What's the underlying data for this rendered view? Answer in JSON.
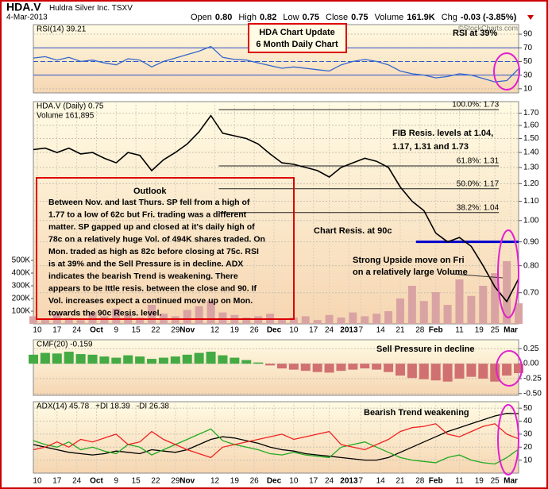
{
  "header": {
    "symbol": "HDA.V",
    "company": "Huldra Silver Inc.",
    "exchange": "TSXV",
    "date": "4-Mar-2013",
    "stats": [
      {
        "label": "Open",
        "value": "0.80"
      },
      {
        "label": "High",
        "value": "0.82"
      },
      {
        "label": "Low",
        "value": "0.75"
      },
      {
        "label": "Close",
        "value": "0.75"
      },
      {
        "label": "Volume",
        "value": "161.9K"
      },
      {
        "label": "Chg",
        "value": "-0.03 (-3.85%)"
      }
    ],
    "watermark": "©StockCharts.com"
  },
  "annotations": {
    "update_box": [
      "HDA Chart Update",
      "6 Month Daily Chart"
    ],
    "rsi_note": "RSI at 39%",
    "fib_note": [
      "FIB Resis. levels at 1.04,",
      "1.17, 1.31 and 1.73"
    ],
    "outlook_title": "Outlook",
    "outlook": [
      "Between Nov. and last Thurs. SP fell from a high of",
      "1.77 to a low of 62c but Fri. trading was a different",
      "matter. SP gapped up and closed at it's daily high of",
      "78c on a relatively huge Vol. of 494K shares traded. On",
      "Mon. traded as high as 82c before closing at 75c. RSI",
      "is at 39% and the Sell Pressure is in decline. ADX",
      "indicates the bearish Trend is weakening. There",
      "appears to be Ittle resis. between the close and 90. If",
      "Vol. increases expect a continued move up on Mon.",
      "towards the 90c Resis. level."
    ],
    "resis_note": "Chart Resis. at 90c",
    "upside_note": [
      "Strong Upside move on Fri",
      "on a relatively large Volume"
    ],
    "sell_note": "Sell Pressure in decline",
    "bear_note": "Bearish Trend weakening"
  },
  "chart_data": [
    {
      "type": "line",
      "xlim": [
        0,
        123
      ],
      "ylim": [
        4,
        104
      ],
      "yticks": [
        10,
        30,
        50,
        70,
        90
      ],
      "bands": [
        30,
        70
      ],
      "midline": 50,
      "band_color": "#3355cc",
      "x": [
        0,
        3,
        6,
        9,
        12,
        15,
        18,
        21,
        24,
        27,
        30,
        33,
        36,
        39,
        42,
        45,
        48,
        51,
        54,
        57,
        60,
        63,
        66,
        69,
        72,
        75,
        78,
        81,
        84,
        87,
        90,
        93,
        96,
        99,
        102,
        105,
        108,
        111,
        114,
        117,
        120,
        123
      ],
      "series": [
        {
          "name": "RSI(14) 39.21",
          "color": "#3366cc",
          "values": [
            55,
            57,
            52,
            56,
            50,
            52,
            48,
            45,
            54,
            52,
            42,
            50,
            55,
            60,
            65,
            72,
            56,
            53,
            52,
            48,
            44,
            40,
            42,
            40,
            38,
            36,
            45,
            50,
            53,
            50,
            45,
            36,
            32,
            30,
            26,
            28,
            32,
            30,
            25,
            20,
            22,
            39.21
          ]
        }
      ]
    },
    {
      "type": "line",
      "log_scale": true,
      "xlim": [
        0,
        123
      ],
      "ylim": [
        0.6,
        1.8
      ],
      "yticks": [
        {
          "value": 0.7,
          "label": "0.70"
        },
        {
          "value": 0.8,
          "label": "0.80"
        },
        {
          "value": 0.9,
          "label": "0.90"
        },
        {
          "value": 1.0,
          "label": "1.00"
        },
        {
          "value": 1.1,
          "label": "1.10"
        },
        {
          "value": 1.2,
          "label": "1.20"
        },
        {
          "value": 1.3,
          "label": "1.30"
        },
        {
          "value": 1.4,
          "label": "1.40"
        },
        {
          "value": 1.5,
          "label": "1.50"
        },
        {
          "value": 1.6,
          "label": "1.60"
        },
        {
          "value": 1.7,
          "label": "1.70"
        }
      ],
      "xticks": [
        {
          "value": 1,
          "label": "10"
        },
        {
          "value": 6,
          "label": "17"
        },
        {
          "value": 11,
          "label": "24"
        },
        {
          "value": 16,
          "label": "Oct"
        },
        {
          "value": 21,
          "label": "9"
        },
        {
          "value": 26,
          "label": "15"
        },
        {
          "value": 31,
          "label": "22"
        },
        {
          "value": 36,
          "label": "29"
        },
        {
          "value": 39,
          "label": "Nov"
        },
        {
          "value": 46,
          "label": "12"
        },
        {
          "value": 51,
          "label": "19"
        },
        {
          "value": 56,
          "label": "26"
        },
        {
          "value": 61,
          "label": "Dec"
        },
        {
          "value": 66,
          "label": "10"
        },
        {
          "value": 71,
          "label": "17"
        },
        {
          "value": 75,
          "label": "24"
        },
        {
          "value": 80,
          "label": "2013"
        },
        {
          "value": 83,
          "label": "7"
        },
        {
          "value": 88,
          "label": "14"
        },
        {
          "value": 93,
          "label": "21"
        },
        {
          "value": 98,
          "label": "28"
        },
        {
          "value": 102,
          "label": "Feb"
        },
        {
          "value": 108,
          "label": "11"
        },
        {
          "value": 113,
          "label": "19"
        },
        {
          "value": 117,
          "label": "25"
        },
        {
          "value": 121,
          "label": "Mar"
        }
      ],
      "x": [
        0,
        3,
        6,
        9,
        12,
        15,
        18,
        21,
        24,
        27,
        30,
        33,
        36,
        39,
        42,
        45,
        48,
        51,
        54,
        57,
        60,
        63,
        66,
        69,
        72,
        75,
        78,
        81,
        84,
        87,
        90,
        93,
        96,
        99,
        102,
        105,
        108,
        111,
        114,
        117,
        120,
        123
      ],
      "series": [
        {
          "name": "HDA.V (Daily) 0.75",
          "color": "#000000",
          "values": [
            1.42,
            1.43,
            1.4,
            1.43,
            1.39,
            1.4,
            1.36,
            1.33,
            1.4,
            1.38,
            1.28,
            1.35,
            1.4,
            1.46,
            1.55,
            1.68,
            1.54,
            1.52,
            1.5,
            1.46,
            1.39,
            1.33,
            1.32,
            1.3,
            1.28,
            1.24,
            1.3,
            1.33,
            1.36,
            1.34,
            1.3,
            1.18,
            1.1,
            1.05,
            0.94,
            0.9,
            0.92,
            0.88,
            0.8,
            0.72,
            0.67,
            0.75
          ]
        }
      ],
      "volume": {
        "name": "Volume 161,895",
        "color": "#d9a3a3",
        "ylim": [
          0,
          1750000
        ],
        "yticks": [
          {
            "value": 100000,
            "label": "100K"
          },
          {
            "value": 200000,
            "label": "200K"
          },
          {
            "value": 300000,
            "label": "300K"
          },
          {
            "value": 400000,
            "label": "400K"
          },
          {
            "value": 500000,
            "label": "500K"
          }
        ],
        "values": [
          60000,
          40000,
          80000,
          50000,
          30000,
          90000,
          60000,
          120000,
          70000,
          50000,
          150000,
          80000,
          60000,
          110000,
          140000,
          180000,
          90000,
          70000,
          50000,
          60000,
          80000,
          40000,
          50000,
          60000,
          30000,
          70000,
          50000,
          90000,
          60000,
          80000,
          100000,
          200000,
          300000,
          180000,
          250000,
          150000,
          350000,
          220000,
          300000,
          400000,
          494000,
          161895
        ]
      },
      "reference_lines": [
        {
          "value": 1.73,
          "label": "100.0%: 1.73"
        },
        {
          "value": 1.31,
          "label": "61.8%: 1.31"
        },
        {
          "value": 1.17,
          "label": "50.0%: 1.17"
        },
        {
          "value": 1.04,
          "label": "38.2%: 1.04"
        }
      ],
      "resistance": {
        "value": 0.9,
        "color": "#0000cc"
      }
    },
    {
      "type": "bar",
      "xlim": [
        0,
        123
      ],
      "ylim": [
        -0.53,
        0.4
      ],
      "yticks": [
        {
          "value": -0.5,
          "label": "-0.50"
        },
        {
          "value": -0.25,
          "label": "-0.25"
        },
        {
          "value": 0,
          "label": "0.00"
        },
        {
          "value": 0.25,
          "label": "0.25"
        }
      ],
      "x": [
        0,
        3,
        6,
        9,
        12,
        15,
        18,
        21,
        24,
        27,
        30,
        33,
        36,
        39,
        42,
        45,
        48,
        51,
        54,
        57,
        60,
        63,
        66,
        69,
        72,
        75,
        78,
        81,
        84,
        87,
        90,
        93,
        96,
        99,
        102,
        105,
        108,
        111,
        114,
        117,
        120,
        123
      ],
      "series": [
        {
          "name": "CMF(20) -0.159",
          "color": "#44aa44",
          "negative_color": "#d07070",
          "values": [
            0.15,
            0.18,
            0.17,
            0.2,
            0.16,
            0.15,
            0.12,
            0.1,
            0.14,
            0.12,
            0.08,
            0.1,
            0.12,
            0.15,
            0.18,
            0.2,
            0.14,
            0.1,
            0.06,
            0.02,
            -0.03,
            -0.08,
            -0.1,
            -0.12,
            -0.14,
            -0.15,
            -0.12,
            -0.1,
            -0.08,
            -0.1,
            -0.14,
            -0.2,
            -0.24,
            -0.26,
            -0.28,
            -0.3,
            -0.25,
            -0.22,
            -0.25,
            -0.3,
            -0.2,
            -0.159
          ]
        }
      ]
    },
    {
      "type": "line",
      "xlim": [
        0,
        123
      ],
      "ylim": [
        0,
        55
      ],
      "yticks": [
        10,
        20,
        30,
        40,
        50
      ],
      "xticks": [
        {
          "value": 1,
          "label": "10"
        },
        {
          "value": 6,
          "label": "17"
        },
        {
          "value": 11,
          "label": "24"
        },
        {
          "value": 16,
          "label": "Oct"
        },
        {
          "value": 21,
          "label": "9"
        },
        {
          "value": 26,
          "label": "15"
        },
        {
          "value": 31,
          "label": "22"
        },
        {
          "value": 36,
          "label": "29"
        },
        {
          "value": 39,
          "label": "Nov"
        },
        {
          "value": 46,
          "label": "12"
        },
        {
          "value": 51,
          "label": "19"
        },
        {
          "value": 56,
          "label": "26"
        },
        {
          "value": 61,
          "label": "Dec"
        },
        {
          "value": 66,
          "label": "10"
        },
        {
          "value": 71,
          "label": "17"
        },
        {
          "value": 75,
          "label": "24"
        },
        {
          "value": 80,
          "label": "2013"
        },
        {
          "value": 83,
          "label": "7"
        },
        {
          "value": 88,
          "label": "14"
        },
        {
          "value": 93,
          "label": "21"
        },
        {
          "value": 98,
          "label": "28"
        },
        {
          "value": 102,
          "label": "Feb"
        },
        {
          "value": 108,
          "label": "11"
        },
        {
          "value": 113,
          "label": "19"
        },
        {
          "value": 117,
          "label": "25"
        },
        {
          "value": 121,
          "label": "Mar"
        }
      ],
      "x": [
        0,
        3,
        6,
        9,
        12,
        15,
        18,
        21,
        24,
        27,
        30,
        33,
        36,
        39,
        42,
        45,
        48,
        51,
        54,
        57,
        60,
        63,
        66,
        69,
        72,
        75,
        78,
        81,
        84,
        87,
        90,
        93,
        96,
        99,
        102,
        105,
        108,
        111,
        114,
        117,
        120,
        123
      ],
      "series": [
        {
          "name": "ADX(14) 45.78",
          "color": "#000000",
          "values": [
            22,
            20,
            18,
            16,
            15,
            14,
            15,
            17,
            16,
            15,
            18,
            17,
            16,
            18,
            22,
            26,
            28,
            27,
            25,
            23,
            20,
            18,
            17,
            15,
            14,
            13,
            12,
            11,
            10,
            10,
            12,
            16,
            20,
            24,
            28,
            32,
            35,
            38,
            41,
            44,
            46,
            45.78
          ]
        },
        {
          "name": "+DI 18.39",
          "color": "#22aa22",
          "values": [
            25,
            22,
            20,
            24,
            18,
            20,
            17,
            15,
            22,
            20,
            14,
            18,
            22,
            26,
            30,
            34,
            25,
            22,
            20,
            18,
            15,
            14,
            16,
            14,
            13,
            12,
            20,
            22,
            24,
            20,
            16,
            12,
            10,
            9,
            8,
            12,
            14,
            10,
            8,
            7,
            12,
            18.39
          ]
        },
        {
          "name": "-DI 26.38",
          "color": "#ee2222",
          "values": [
            18,
            20,
            24,
            20,
            26,
            24,
            27,
            30,
            22,
            24,
            32,
            26,
            22,
            18,
            15,
            12,
            20,
            22,
            24,
            26,
            28,
            30,
            26,
            28,
            30,
            32,
            22,
            20,
            18,
            22,
            26,
            32,
            35,
            36,
            38,
            30,
            28,
            32,
            36,
            38,
            30,
            26.38
          ]
        }
      ]
    }
  ]
}
